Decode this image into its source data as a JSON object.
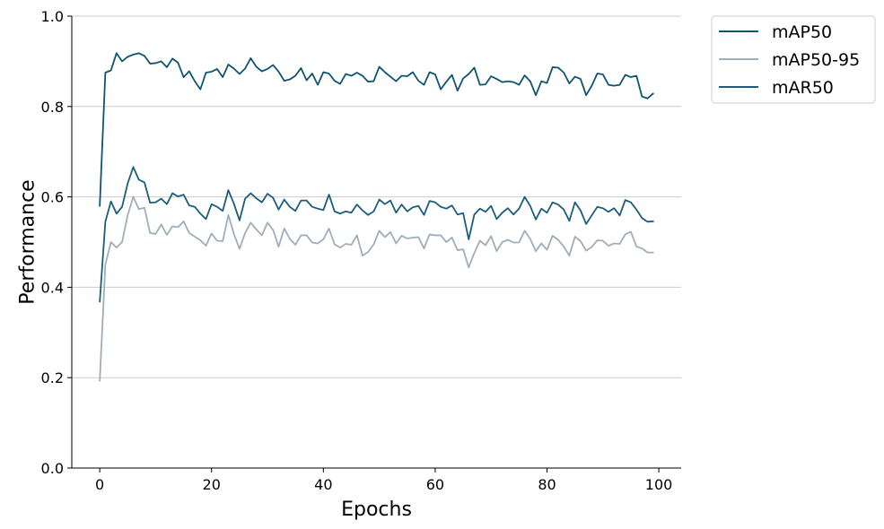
{
  "chart_data": {
    "type": "line",
    "xlabel": "Epochs",
    "ylabel": "Performance",
    "xlim": [
      -5,
      104
    ],
    "ylim": [
      0.0,
      1.0
    ],
    "xticks": [
      0,
      20,
      40,
      60,
      80,
      100
    ],
    "yticks": [
      0.0,
      0.2,
      0.4,
      0.6,
      0.8,
      1.0
    ],
    "xtick_labels": [
      "0",
      "20",
      "40",
      "60",
      "80",
      "100"
    ],
    "ytick_labels": [
      "0.0",
      "0.2",
      "0.4",
      "0.6",
      "0.8",
      "1.0"
    ],
    "grid": "horizontal",
    "legend_position": "outside-top-right",
    "x_start": 0,
    "series": [
      {
        "name": "mAP50",
        "color": "#0f5470",
        "values": [
          0.58,
          0.875,
          0.88,
          0.918,
          0.9,
          0.91,
          0.915,
          0.918,
          0.912,
          0.895,
          0.896,
          0.9,
          0.887,
          0.906,
          0.897,
          0.865,
          0.878,
          0.856,
          0.838,
          0.875,
          0.877,
          0.883,
          0.865,
          0.893,
          0.884,
          0.872,
          0.884,
          0.907,
          0.888,
          0.878,
          0.883,
          0.892,
          0.877,
          0.857,
          0.86,
          0.868,
          0.885,
          0.858,
          0.873,
          0.848,
          0.876,
          0.873,
          0.857,
          0.85,
          0.872,
          0.868,
          0.875,
          0.868,
          0.855,
          0.856,
          0.888,
          0.876,
          0.866,
          0.856,
          0.868,
          0.867,
          0.876,
          0.857,
          0.848,
          0.876,
          0.871,
          0.838,
          0.855,
          0.87,
          0.835,
          0.862,
          0.872,
          0.886,
          0.848,
          0.849,
          0.867,
          0.861,
          0.854,
          0.856,
          0.854,
          0.848,
          0.869,
          0.856,
          0.825,
          0.856,
          0.852,
          0.887,
          0.886,
          0.875,
          0.851,
          0.866,
          0.861,
          0.825,
          0.846,
          0.873,
          0.871,
          0.848,
          0.846,
          0.848,
          0.87,
          0.865,
          0.868,
          0.822,
          0.818,
          0.829
        ]
      },
      {
        "name": "mAP50-95",
        "color": "#a0adba",
        "values": [
          0.193,
          0.45,
          0.5,
          0.488,
          0.5,
          0.56,
          0.6,
          0.573,
          0.576,
          0.52,
          0.518,
          0.539,
          0.516,
          0.535,
          0.533,
          0.546,
          0.52,
          0.512,
          0.504,
          0.492,
          0.519,
          0.503,
          0.502,
          0.56,
          0.518,
          0.485,
          0.52,
          0.543,
          0.528,
          0.515,
          0.543,
          0.527,
          0.49,
          0.53,
          0.507,
          0.494,
          0.515,
          0.515,
          0.499,
          0.497,
          0.506,
          0.53,
          0.495,
          0.488,
          0.496,
          0.494,
          0.515,
          0.47,
          0.478,
          0.495,
          0.525,
          0.511,
          0.522,
          0.497,
          0.514,
          0.508,
          0.51,
          0.511,
          0.486,
          0.517,
          0.515,
          0.515,
          0.5,
          0.51,
          0.482,
          0.484,
          0.444,
          0.476,
          0.503,
          0.493,
          0.513,
          0.48,
          0.5,
          0.505,
          0.499,
          0.499,
          0.525,
          0.507,
          0.48,
          0.497,
          0.483,
          0.514,
          0.505,
          0.49,
          0.47,
          0.512,
          0.502,
          0.481,
          0.489,
          0.504,
          0.503,
          0.492,
          0.497,
          0.496,
          0.517,
          0.523,
          0.49,
          0.486,
          0.477,
          0.477
        ]
      },
      {
        "name": "mAR50",
        "color": "#1a5e7c",
        "values": [
          0.368,
          0.545,
          0.59,
          0.563,
          0.578,
          0.63,
          0.666,
          0.638,
          0.632,
          0.587,
          0.588,
          0.596,
          0.584,
          0.608,
          0.601,
          0.605,
          0.581,
          0.578,
          0.563,
          0.551,
          0.584,
          0.578,
          0.569,
          0.615,
          0.585,
          0.548,
          0.596,
          0.608,
          0.597,
          0.588,
          0.607,
          0.598,
          0.572,
          0.594,
          0.578,
          0.569,
          0.592,
          0.592,
          0.578,
          0.574,
          0.571,
          0.605,
          0.568,
          0.563,
          0.568,
          0.565,
          0.583,
          0.57,
          0.56,
          0.568,
          0.594,
          0.584,
          0.592,
          0.565,
          0.583,
          0.568,
          0.577,
          0.58,
          0.56,
          0.591,
          0.588,
          0.578,
          0.574,
          0.581,
          0.561,
          0.564,
          0.506,
          0.561,
          0.574,
          0.567,
          0.58,
          0.551,
          0.565,
          0.575,
          0.561,
          0.574,
          0.6,
          0.58,
          0.55,
          0.574,
          0.565,
          0.588,
          0.583,
          0.572,
          0.547,
          0.588,
          0.57,
          0.54,
          0.559,
          0.578,
          0.575,
          0.567,
          0.575,
          0.559,
          0.593,
          0.588,
          0.572,
          0.553,
          0.545,
          0.546
        ]
      }
    ]
  }
}
